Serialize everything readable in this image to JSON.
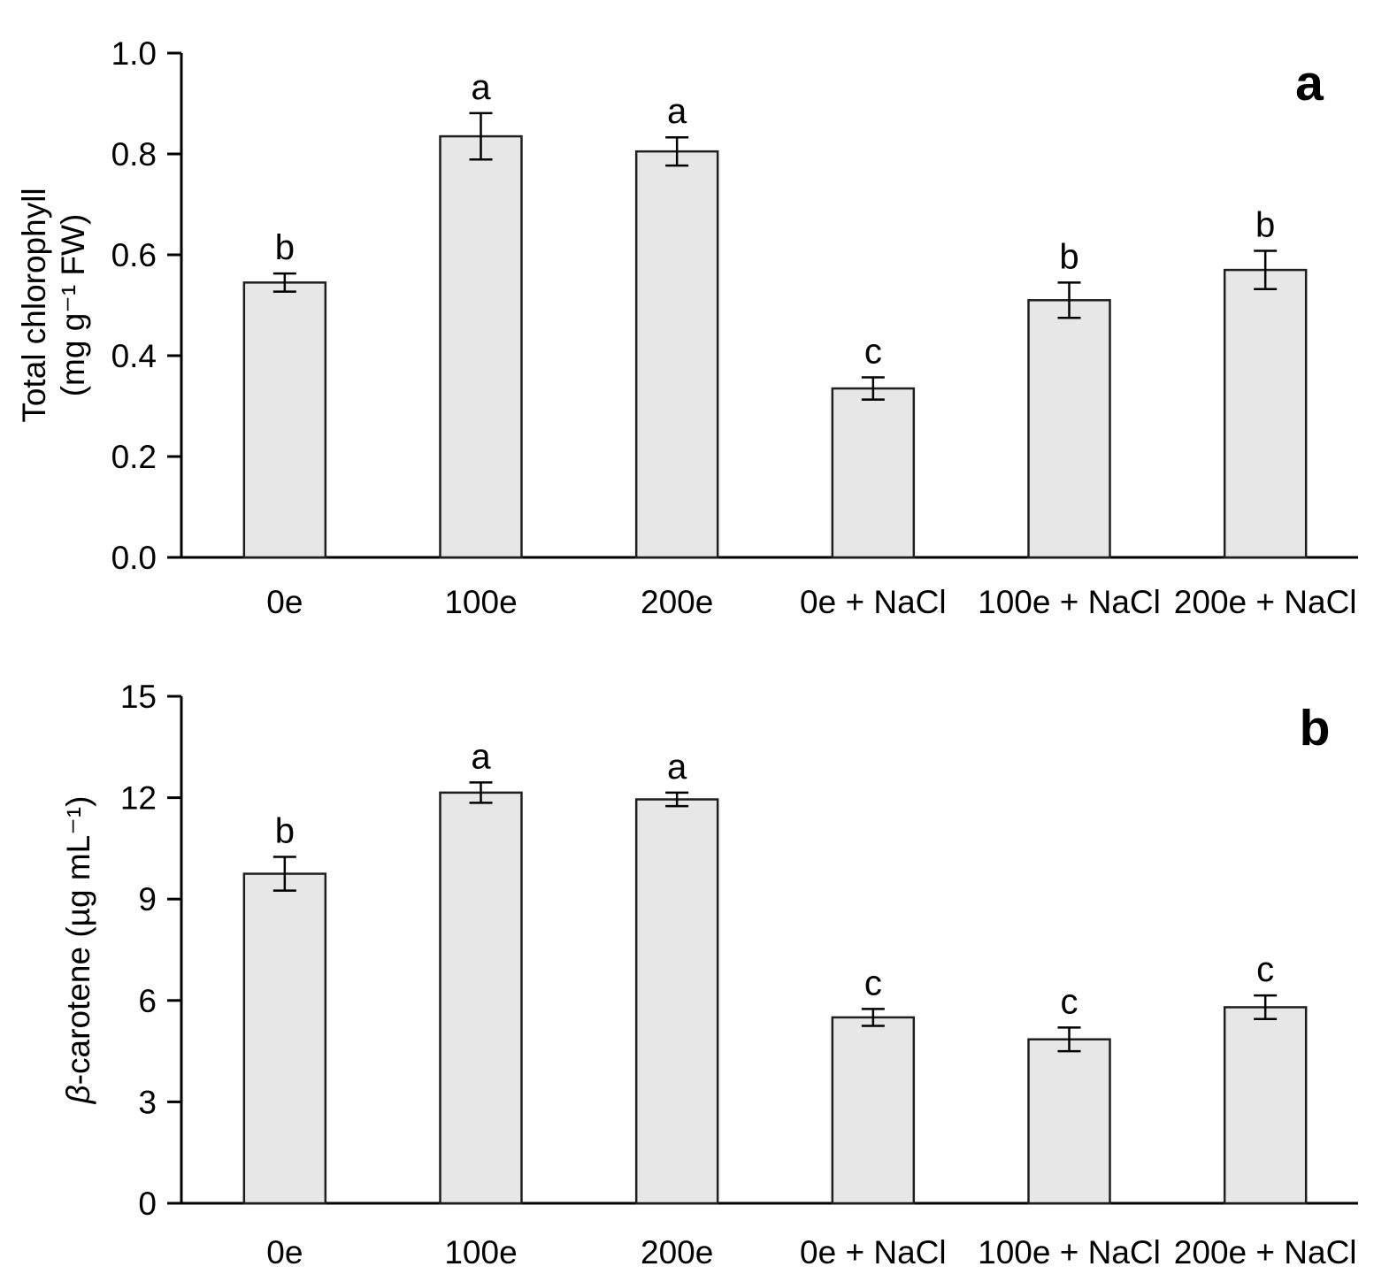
{
  "figure": {
    "background": "#ffffff",
    "bar_fill": "#e7e7e7",
    "bar_stroke": "#1f1f1f",
    "axis_color": "#000000",
    "text_color": "#000000"
  },
  "chart_data": [
    {
      "type": "bar",
      "panel_label": "a",
      "title": "",
      "xlabel": "",
      "ylabel_lines": [
        [
          {
            "t": "Total chlorophyll"
          }
        ],
        [
          {
            "t": "(mg g⁻¹ FW)"
          }
        ]
      ],
      "categories": [
        "0e",
        "100e",
        "200e",
        "0e + NaCl",
        "100e + NaCl",
        "200e + NaCl"
      ],
      "values": [
        0.545,
        0.835,
        0.805,
        0.335,
        0.51,
        0.57
      ],
      "errors": [
        0.018,
        0.046,
        0.028,
        0.022,
        0.035,
        0.038
      ],
      "sig_letters": [
        "b",
        "a",
        "a",
        "c",
        "b",
        "b"
      ],
      "ylim": [
        0,
        1.0
      ],
      "yticks": [
        0,
        0.2,
        0.4,
        0.6,
        0.8,
        1.0
      ],
      "ytick_labels": [
        "0.0",
        "0.2",
        "0.4",
        "0.6",
        "0.8",
        "1.0"
      ],
      "grid": false,
      "legend": null
    },
    {
      "type": "bar",
      "panel_label": "b",
      "title": "",
      "xlabel": "",
      "ylabel_lines": [
        [
          {
            "t": "β",
            "i": true
          },
          {
            "t": "-carotene  (µg mL⁻¹)"
          }
        ]
      ],
      "categories": [
        "0e",
        "100e",
        "200e",
        "0e + NaCl",
        "100e + NaCl",
        "200e + NaCl"
      ],
      "values": [
        9.75,
        12.15,
        11.95,
        5.5,
        4.85,
        5.8
      ],
      "errors": [
        0.5,
        0.3,
        0.2,
        0.25,
        0.35,
        0.35
      ],
      "sig_letters": [
        "b",
        "a",
        "a",
        "c",
        "c",
        "c"
      ],
      "ylim": [
        0,
        15
      ],
      "yticks": [
        0,
        3,
        6,
        9,
        12,
        15
      ],
      "ytick_labels": [
        "0",
        "3",
        "6",
        "9",
        "12",
        "15"
      ],
      "grid": false,
      "legend": null
    }
  ]
}
